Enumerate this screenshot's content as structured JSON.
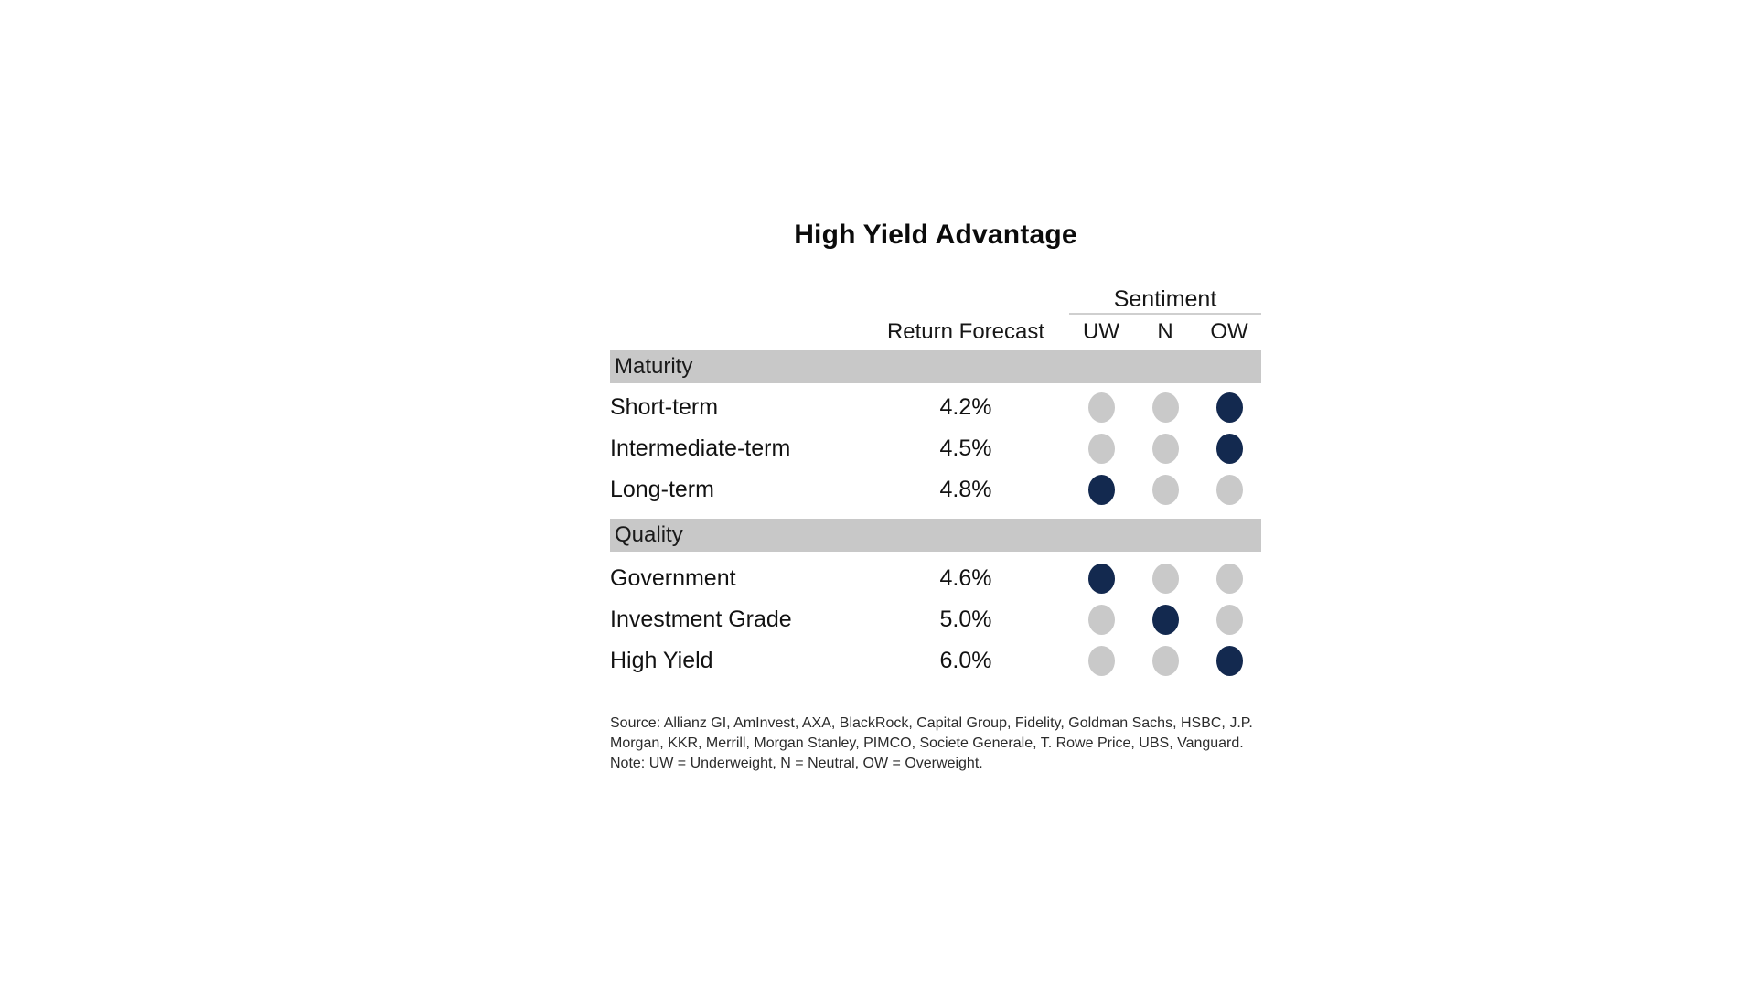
{
  "title": "High Yield Advantage",
  "colors": {
    "navy": "#13294f",
    "dot_gray": "#c9c9c9",
    "band_gray": "#c8c8c8",
    "rule_gray": "#cfcfcf"
  },
  "header": {
    "sentiment_group_label": "Sentiment",
    "return_forecast_label": "Return Forecast",
    "sentiment_columns": [
      "UW",
      "N",
      "OW"
    ]
  },
  "sections": [
    {
      "name": "Maturity",
      "rows": [
        {
          "label": "Short-term",
          "forecast": "4.2%",
          "sentiment": "OW",
          "dot_classes": [
            "dot gray",
            "dot gray",
            "dot navy"
          ]
        },
        {
          "label": "Intermediate-term",
          "forecast": "4.5%",
          "sentiment": "OW",
          "dot_classes": [
            "dot gray",
            "dot gray",
            "dot navy"
          ]
        },
        {
          "label": "Long-term",
          "forecast": "4.8%",
          "sentiment": "UW",
          "dot_classes": [
            "dot navy",
            "dot gray",
            "dot gray"
          ]
        }
      ]
    },
    {
      "name": "Quality",
      "rows": [
        {
          "label": "Government",
          "forecast": "4.6%",
          "sentiment": "UW",
          "dot_classes": [
            "dot navy",
            "dot gray",
            "dot gray"
          ]
        },
        {
          "label": "Investment Grade",
          "forecast": "5.0%",
          "sentiment": "N",
          "dot_classes": [
            "dot gray",
            "dot navy",
            "dot gray"
          ]
        },
        {
          "label": "High Yield",
          "forecast": "6.0%",
          "sentiment": "OW",
          "dot_classes": [
            "dot gray",
            "dot gray",
            "dot navy"
          ]
        }
      ]
    }
  ],
  "footnote": {
    "source": "Source: Allianz GI, AmInvest, AXA, BlackRock, Capital Group, Fidelity, Goldman Sachs, HSBC, J.P. Morgan, KKR, Merrill, Morgan Stanley, PIMCO, Societe Generale, T. Rowe Price, UBS, Vanguard.",
    "note": "Note: UW = Underweight, N = Neutral, OW = Overweight."
  },
  "chart_data": {
    "type": "table",
    "title": "High Yield Advantage",
    "column_group": {
      "label": "Sentiment",
      "columns": [
        "UW",
        "N",
        "OW"
      ]
    },
    "columns": [
      "Return Forecast",
      "UW",
      "N",
      "OW"
    ],
    "legend": {
      "UW": "Underweight",
      "N": "Neutral",
      "OW": "Overweight"
    },
    "rows": [
      {
        "section": "Maturity",
        "label": "Short-term",
        "return_forecast_pct": 4.2,
        "sentiment": "OW"
      },
      {
        "section": "Maturity",
        "label": "Intermediate-term",
        "return_forecast_pct": 4.5,
        "sentiment": "OW"
      },
      {
        "section": "Maturity",
        "label": "Long-term",
        "return_forecast_pct": 4.8,
        "sentiment": "UW"
      },
      {
        "section": "Quality",
        "label": "Government",
        "return_forecast_pct": 4.6,
        "sentiment": "UW"
      },
      {
        "section": "Quality",
        "label": "Investment Grade",
        "return_forecast_pct": 5.0,
        "sentiment": "N"
      },
      {
        "section": "Quality",
        "label": "High Yield",
        "return_forecast_pct": 6.0,
        "sentiment": "OW"
      }
    ]
  }
}
